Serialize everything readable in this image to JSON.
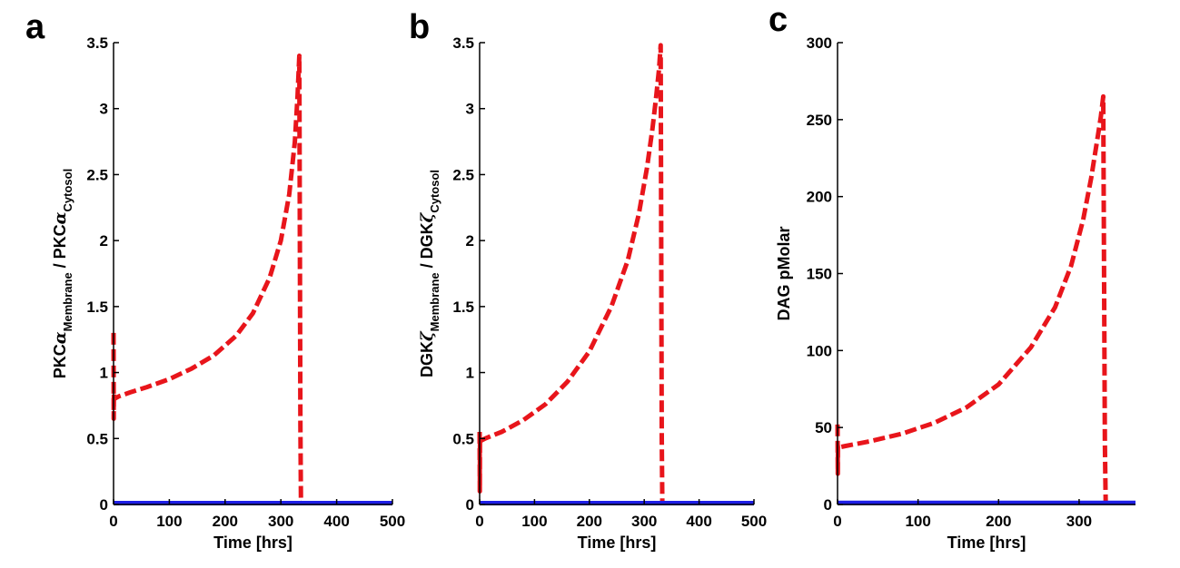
{
  "chart_data": [
    {
      "panel": "a",
      "type": "line",
      "xlabel": "Time [hrs]",
      "ylabel_parts": [
        "PKC",
        "α",
        "Membrane",
        " / PKC",
        "α",
        "Cytosol"
      ],
      "xlim": [
        0,
        500
      ],
      "ylim": [
        0,
        3.5
      ],
      "xticks": [
        0,
        100,
        200,
        300,
        400,
        500
      ],
      "yticks": [
        0,
        0.5,
        1,
        1.5,
        2,
        2.5,
        3,
        3.5
      ],
      "series": [
        {
          "style": "dashed",
          "color": "#e8151b",
          "x": [
            0,
            0.3,
            0.6,
            1,
            10,
            30,
            60,
            100,
            140,
            180,
            220,
            250,
            280,
            300,
            315,
            325,
            330,
            333,
            334,
            335,
            336,
            337
          ],
          "y": [
            1.3,
            0.65,
            0.85,
            0.8,
            0.82,
            0.85,
            0.89,
            0.95,
            1.03,
            1.13,
            1.28,
            1.45,
            1.72,
            2.0,
            2.35,
            2.75,
            3.1,
            3.4,
            2.0,
            0.6,
            0.02,
            0.02
          ]
        },
        {
          "style": "solid",
          "color": "#1e1ee6",
          "x": [
            0,
            500
          ],
          "y": [
            0.01,
            0.01
          ]
        }
      ]
    },
    {
      "panel": "b",
      "type": "line",
      "xlabel": "Time [hrs]",
      "ylabel_parts": [
        "DGK",
        "ζ",
        "Membrane",
        " / DGK",
        "ζ",
        "Cytosol"
      ],
      "xlim": [
        0,
        500
      ],
      "ylim": [
        0,
        3.5
      ],
      "xticks": [
        0,
        100,
        200,
        300,
        400,
        500
      ],
      "yticks": [
        0,
        0.5,
        1,
        1.5,
        2,
        2.5,
        3,
        3.5
      ],
      "series": [
        {
          "style": "dashed",
          "color": "#e8151b",
          "x": [
            0,
            0.3,
            0.6,
            1,
            10,
            40,
            80,
            120,
            160,
            200,
            240,
            270,
            290,
            305,
            315,
            322,
            327,
            330,
            331,
            332,
            333
          ],
          "y": [
            0.55,
            0.1,
            0.5,
            0.48,
            0.5,
            0.55,
            0.64,
            0.76,
            0.93,
            1.16,
            1.5,
            1.85,
            2.2,
            2.55,
            2.85,
            3.1,
            3.3,
            3.48,
            2.0,
            0.5,
            0.02
          ]
        },
        {
          "style": "solid",
          "color": "#1e1ee6",
          "x": [
            0,
            500
          ],
          "y": [
            0.01,
            0.01
          ]
        }
      ]
    },
    {
      "panel": "c",
      "type": "line",
      "xlabel": "Time [hrs]",
      "ylabel_parts": [
        "DAG pMolar"
      ],
      "xlim": [
        0,
        370
      ],
      "ylim": [
        0,
        300
      ],
      "xticks": [
        0,
        100,
        200,
        300
      ],
      "yticks": [
        0,
        50,
        100,
        150,
        200,
        250,
        300
      ],
      "series": [
        {
          "style": "dashed",
          "color": "#e8151b",
          "x": [
            0,
            0.3,
            0.6,
            1,
            10,
            40,
            80,
            120,
            160,
            200,
            240,
            270,
            290,
            305,
            315,
            322,
            327,
            330,
            331,
            332,
            333
          ],
          "y": [
            52,
            20,
            38,
            37,
            38,
            41,
            46,
            53,
            63,
            78,
            102,
            128,
            155,
            185,
            212,
            235,
            252,
            265,
            150,
            40,
            1
          ]
        },
        {
          "style": "solid",
          "color": "#1e1ee6",
          "x": [
            0,
            370
          ],
          "y": [
            1,
            1
          ]
        }
      ]
    }
  ]
}
